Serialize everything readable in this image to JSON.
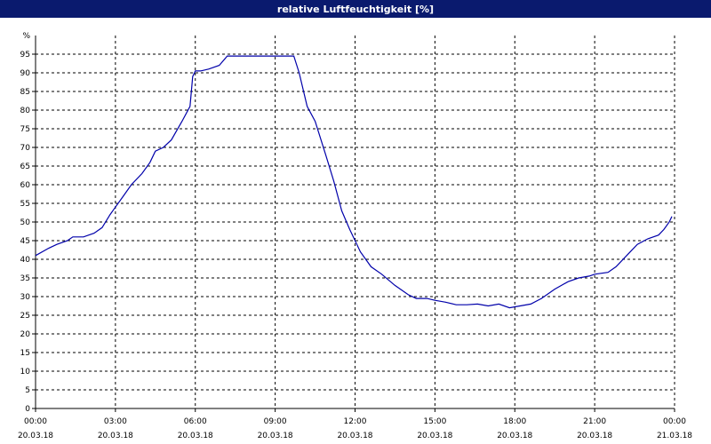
{
  "window": {
    "title": "relative Luftfeuchtigkeit [%]"
  },
  "colors": {
    "title_bar": "#0a1a6e",
    "line": "#0000aa",
    "grid": "#000000"
  },
  "chart_data": {
    "type": "line",
    "title": "relative Luftfeuchtigkeit [%]",
    "ylabel": "%",
    "xlabel": "",
    "ylim": [
      0,
      100
    ],
    "y_ticks": [
      0,
      5,
      10,
      15,
      20,
      25,
      30,
      35,
      40,
      45,
      50,
      55,
      60,
      65,
      70,
      75,
      80,
      85,
      90,
      95
    ],
    "xlim": [
      0,
      24
    ],
    "x_ticks": [
      {
        "time": "00:00",
        "date": "20.03.18"
      },
      {
        "time": "03:00",
        "date": "20.03.18"
      },
      {
        "time": "06:00",
        "date": "20.03.18"
      },
      {
        "time": "09:00",
        "date": "20.03.18"
      },
      {
        "time": "12:00",
        "date": "20.03.18"
      },
      {
        "time": "15:00",
        "date": "20.03.18"
      },
      {
        "time": "18:00",
        "date": "20.03.18"
      },
      {
        "time": "21:00",
        "date": "20.03.18"
      },
      {
        "time": "00:00",
        "date": "21.03.18"
      }
    ],
    "grid": true,
    "series": [
      {
        "x": [
          0,
          0.5,
          0.8,
          1.2,
          1.4,
          1.8,
          2.2,
          2.5,
          2.8,
          3.0,
          3.3,
          3.6,
          4.0,
          4.3,
          4.5,
          4.8,
          5.1,
          5.5,
          5.8,
          5.9,
          6.0,
          6.2,
          6.5,
          6.9,
          7.2,
          7.5,
          8.0,
          8.5,
          9.0,
          9.5,
          9.7,
          9.9,
          10.2,
          10.5,
          10.9,
          11.2,
          11.5,
          11.8,
          12.2,
          12.6,
          13.0,
          13.5,
          14.0,
          14.3,
          14.7,
          15.0,
          15.4,
          15.8,
          16.2,
          16.6,
          17.0,
          17.4,
          17.8,
          18.2,
          18.6,
          19.0,
          19.5,
          20.0,
          20.4,
          20.8,
          21.0,
          21.5,
          21.8,
          22.2,
          22.6,
          23.0,
          23.4,
          23.6,
          23.8,
          23.9
        ],
        "y": [
          41,
          43,
          44,
          45,
          46,
          46,
          47,
          48.5,
          52,
          54,
          57,
          60,
          63,
          66,
          69,
          70,
          72,
          77,
          81,
          89,
          90.5,
          90.5,
          91,
          92,
          94.5,
          94.5,
          94.5,
          94.5,
          94.5,
          94.5,
          94.5,
          90,
          81,
          77,
          68,
          61,
          53,
          48,
          42,
          38,
          36,
          33,
          30.5,
          29.5,
          29.5,
          29,
          28.5,
          27.8,
          27.8,
          28,
          27.5,
          28,
          27,
          27.5,
          28,
          29.5,
          32,
          34,
          35,
          35.5,
          36,
          36.5,
          38,
          41,
          44,
          45.5,
          46.5,
          48,
          50,
          51.5
        ]
      }
    ]
  }
}
